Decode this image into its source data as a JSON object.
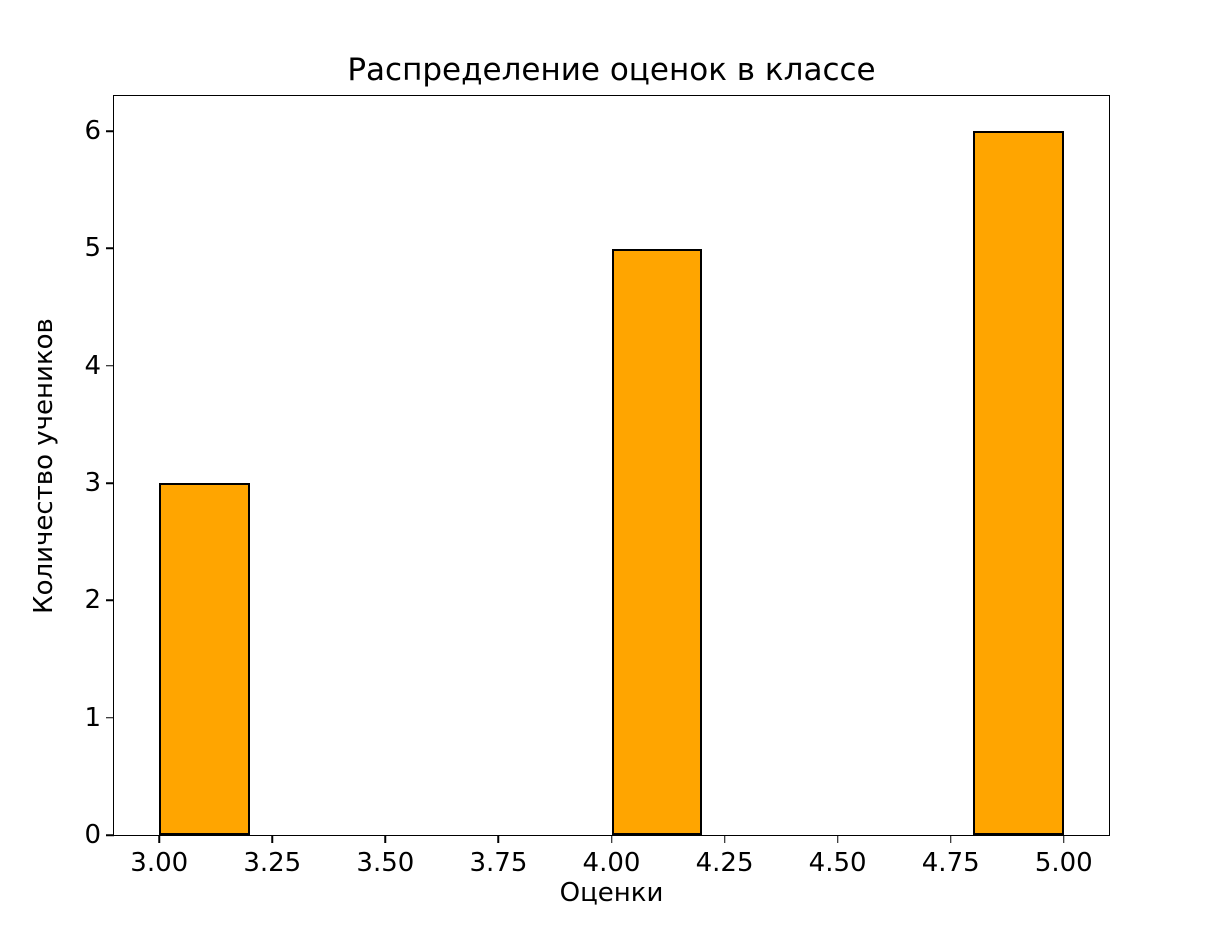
{
  "chart_data": {
    "type": "bar",
    "title": "Распределение оценок в классе",
    "xlabel": "Оценки",
    "ylabel": "Количество учеников",
    "categories": [
      3,
      4,
      5
    ],
    "values": [
      3,
      5,
      6
    ],
    "bars": [
      {
        "x_start": 3.0,
        "x_end": 3.2,
        "value": 3
      },
      {
        "x_start": 4.0,
        "x_end": 4.2,
        "value": 5
      },
      {
        "x_start": 4.8,
        "x_end": 5.0,
        "value": 6
      }
    ],
    "x_ticks": [
      {
        "value": 3.0,
        "label": "3.00"
      },
      {
        "value": 3.25,
        "label": "3.25"
      },
      {
        "value": 3.5,
        "label": "3.50"
      },
      {
        "value": 3.75,
        "label": "3.75"
      },
      {
        "value": 4.0,
        "label": "4.00"
      },
      {
        "value": 4.25,
        "label": "4.25"
      },
      {
        "value": 4.5,
        "label": "4.50"
      },
      {
        "value": 4.75,
        "label": "4.75"
      },
      {
        "value": 5.0,
        "label": "5.00"
      }
    ],
    "y_ticks": [
      {
        "value": 0,
        "label": "0"
      },
      {
        "value": 1,
        "label": "1"
      },
      {
        "value": 2,
        "label": "2"
      },
      {
        "value": 3,
        "label": "3"
      },
      {
        "value": 4,
        "label": "4"
      },
      {
        "value": 5,
        "label": "5"
      },
      {
        "value": 6,
        "label": "6"
      }
    ],
    "xlim": [
      2.9,
      5.1
    ],
    "ylim": [
      0,
      6.3
    ],
    "grid": false,
    "legend": null,
    "bar_color": "#ffa500",
    "bar_edge_color": "#000000",
    "background_color": "#ffffff",
    "text_color": "#000000"
  }
}
